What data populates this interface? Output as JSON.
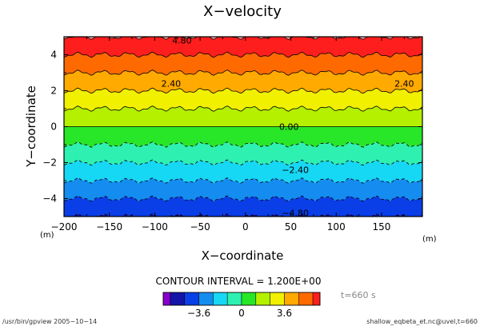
{
  "chart_data": {
    "type": "heatmap",
    "title": "X−velocity",
    "xlabel": "X−coordinate",
    "ylabel": "Y−coordinate",
    "x_unit": "(m)",
    "y_unit": "(m)",
    "xlim": [
      -200,
      195
    ],
    "ylim": [
      -5,
      5
    ],
    "x_ticks": [
      -200,
      -150,
      -100,
      -50,
      0,
      50,
      100,
      150
    ],
    "x_tick_labels": [
      "−200",
      "−150",
      "−100",
      "−50",
      "0",
      "50",
      "100",
      "150"
    ],
    "y_ticks": [
      -4,
      -2,
      0,
      2,
      4
    ],
    "y_tick_labels": [
      "−4",
      "−2",
      "0",
      "2",
      "4"
    ],
    "contour_interval_text": "CONTOUR INTERVAL = 1.200E+00",
    "contour_labels": [
      {
        "text": "4.80",
        "x": -70,
        "y": 4.8
      },
      {
        "text": "2.40",
        "x": -82,
        "y": 2.4
      },
      {
        "text": "2.40",
        "x": 175,
        "y": 2.4
      },
      {
        "text": "0.00",
        "x": 48,
        "y": 0.0
      },
      {
        "text": "−2.40",
        "x": 55,
        "y": -2.4
      },
      {
        "text": "−4.80",
        "x": 55,
        "y": -4.8
      }
    ],
    "colorbar": {
      "levels": [
        -6.6,
        -6.0,
        -4.8,
        -3.6,
        -2.4,
        -1.2,
        0,
        1.2,
        2.4,
        3.6,
        4.8,
        6.0,
        6.6
      ],
      "colors": [
        "#8800cc",
        "#1414a8",
        "#0a3ee6",
        "#148cf0",
        "#16d7f4",
        "#2ef0b0",
        "#28e628",
        "#b4f000",
        "#f0f000",
        "#ffaa00",
        "#ff6a00",
        "#ff1e1e",
        "#ffaaaa"
      ],
      "tick_values": [
        -3.6,
        0,
        3.6
      ],
      "tick_labels": [
        "−3.6",
        "0",
        "3.6"
      ]
    },
    "field": "velocity approximately proportional to y: u ≈ 1.2 · y"
  },
  "footer": {
    "time_label": "t=660 s",
    "left": "/usr/bin/gpview  2005−10−14",
    "right": "shallow_eqbeta_et.nc@uvel,t=660"
  }
}
